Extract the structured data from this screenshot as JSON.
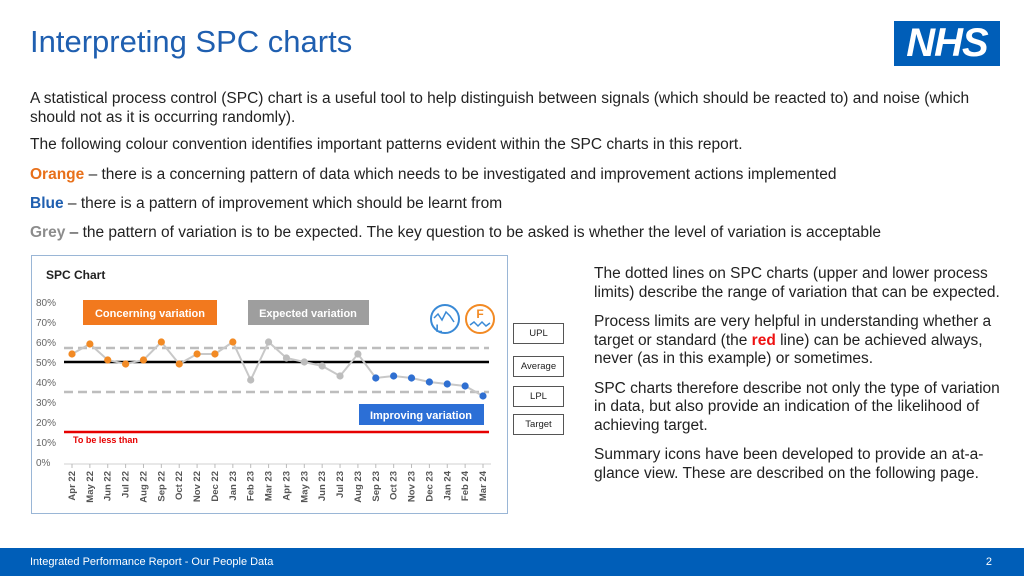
{
  "title": "Interpreting SPC charts",
  "logo": "NHS",
  "intro": "A statistical process control (SPC) chart is a useful tool to help distinguish between signals (which should be reacted to) and noise (which should not as it is occurring randomly).",
  "convention": "The following colour convention identifies important patterns evident within the SPC charts in this report.",
  "orange": {
    "word": "Orange",
    "text": " – there is a concerning pattern of data which needs to be investigated and improvement actions implemented"
  },
  "blue": {
    "word": "Blue",
    "text": " – there is a pattern of improvement which should be learnt from"
  },
  "grey": {
    "word": "Grey",
    "text": " – the pattern of variation is to be expected.  The key question to be asked is whether the level of variation is acceptable"
  },
  "right": {
    "p1": "The dotted lines on SPC charts (upper and lower process limits) describe the range of variation that can be expected.",
    "p2a": "Process limits are very helpful in understanding whether a target or standard (the ",
    "p2red": "red",
    "p2b": " line) can be achieved always, never (as in this example) or sometimes.",
    "p3": "SPC charts therefore describe not only the type of variation in data, but also provide an indication of the likelihood of achieving target.",
    "p4": "Summary icons have been developed to provide an at-a-glance view. These are described on the following page."
  },
  "footer": {
    "text": "Integrated Performance Report - Our People Data",
    "page": "2"
  },
  "chart_data": {
    "type": "line",
    "title": "SPC Chart",
    "categories": [
      "Apr 22",
      "May 22",
      "Jun 22",
      "Jul 22",
      "Aug 22",
      "Sep 22",
      "Oct 22",
      "Nov 22",
      "Dec 22",
      "Jan 23",
      "Feb 23",
      "Mar 23",
      "Apr 23",
      "May 23",
      "Jun 23",
      "Jul 23",
      "Aug 23",
      "Sep 23",
      "Oct 23",
      "Nov 23",
      "Dec 23",
      "Jan 24",
      "Feb 24",
      "Mar 24"
    ],
    "values": [
      54,
      59,
      51,
      49,
      51,
      60,
      49,
      54,
      54,
      60,
      41,
      60,
      52,
      50,
      48,
      43,
      54,
      42,
      43,
      42,
      40,
      39,
      38,
      33
    ],
    "point_status": [
      "concern",
      "concern",
      "concern",
      "concern",
      "concern",
      "concern",
      "concern",
      "concern",
      "concern",
      "concern",
      "expected",
      "expected",
      "expected",
      "expected",
      "expected",
      "expected",
      "expected",
      "improve",
      "improve",
      "improve",
      "improve",
      "improve",
      "improve",
      "improve"
    ],
    "ylim": [
      0,
      80
    ],
    "yticks": [
      "0%",
      "10%",
      "20%",
      "30%",
      "40%",
      "50%",
      "60%",
      "70%",
      "80%"
    ],
    "upl": 57,
    "average": 50,
    "lpl": 35,
    "target": 15,
    "target_label": "To be less than",
    "labels": {
      "concerning": "Concerning variation",
      "expected": "Expected variation",
      "improving": "Improving variation"
    },
    "legend": {
      "upl": "UPL",
      "average": "Average",
      "lpl": "LPL",
      "target": "Target"
    },
    "icon_letters": {
      "left": "L",
      "right": "F"
    },
    "colors": {
      "concern": "#f28a24",
      "expected": "#bdbdbd",
      "improve": "#2f6fd1",
      "limits": "#bdbdbd",
      "average": "#000000",
      "target": "#e60000"
    },
    "grid": false
  }
}
